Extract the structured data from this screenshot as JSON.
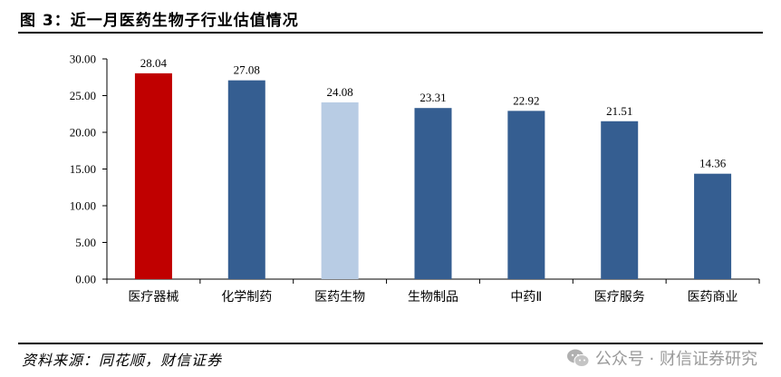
{
  "figure": {
    "title": "图 3：近一月医药生物子行业估值情况",
    "source": "资料来源：同花顺，财信证券",
    "watermark": "公众号 · 财信证券研究",
    "watermark_icon": "wechat-icon"
  },
  "chart_data": {
    "type": "bar",
    "title": "",
    "xlabel": "",
    "ylabel": "",
    "categories": [
      "医疗器械",
      "化学制药",
      "医药生物",
      "生物制品",
      "中药Ⅱ",
      "医疗服务",
      "医药商业"
    ],
    "values": [
      28.04,
      27.08,
      24.08,
      23.31,
      22.92,
      21.51,
      14.36
    ],
    "value_labels": [
      "28.04",
      "27.08",
      "24.08",
      "23.31",
      "22.92",
      "21.51",
      "14.36"
    ],
    "colors": [
      "#C00000",
      "#355E91",
      "#B8CCE4",
      "#355E91",
      "#355E91",
      "#355E91",
      "#355E91"
    ],
    "ylim": [
      0,
      30
    ],
    "yticks": [
      0,
      5,
      10,
      15,
      20,
      25,
      30
    ],
    "ytick_labels": [
      "0.00",
      "5.00",
      "10.00",
      "15.00",
      "20.00",
      "25.00",
      "30.00"
    ],
    "grid": false,
    "legend": "none"
  }
}
